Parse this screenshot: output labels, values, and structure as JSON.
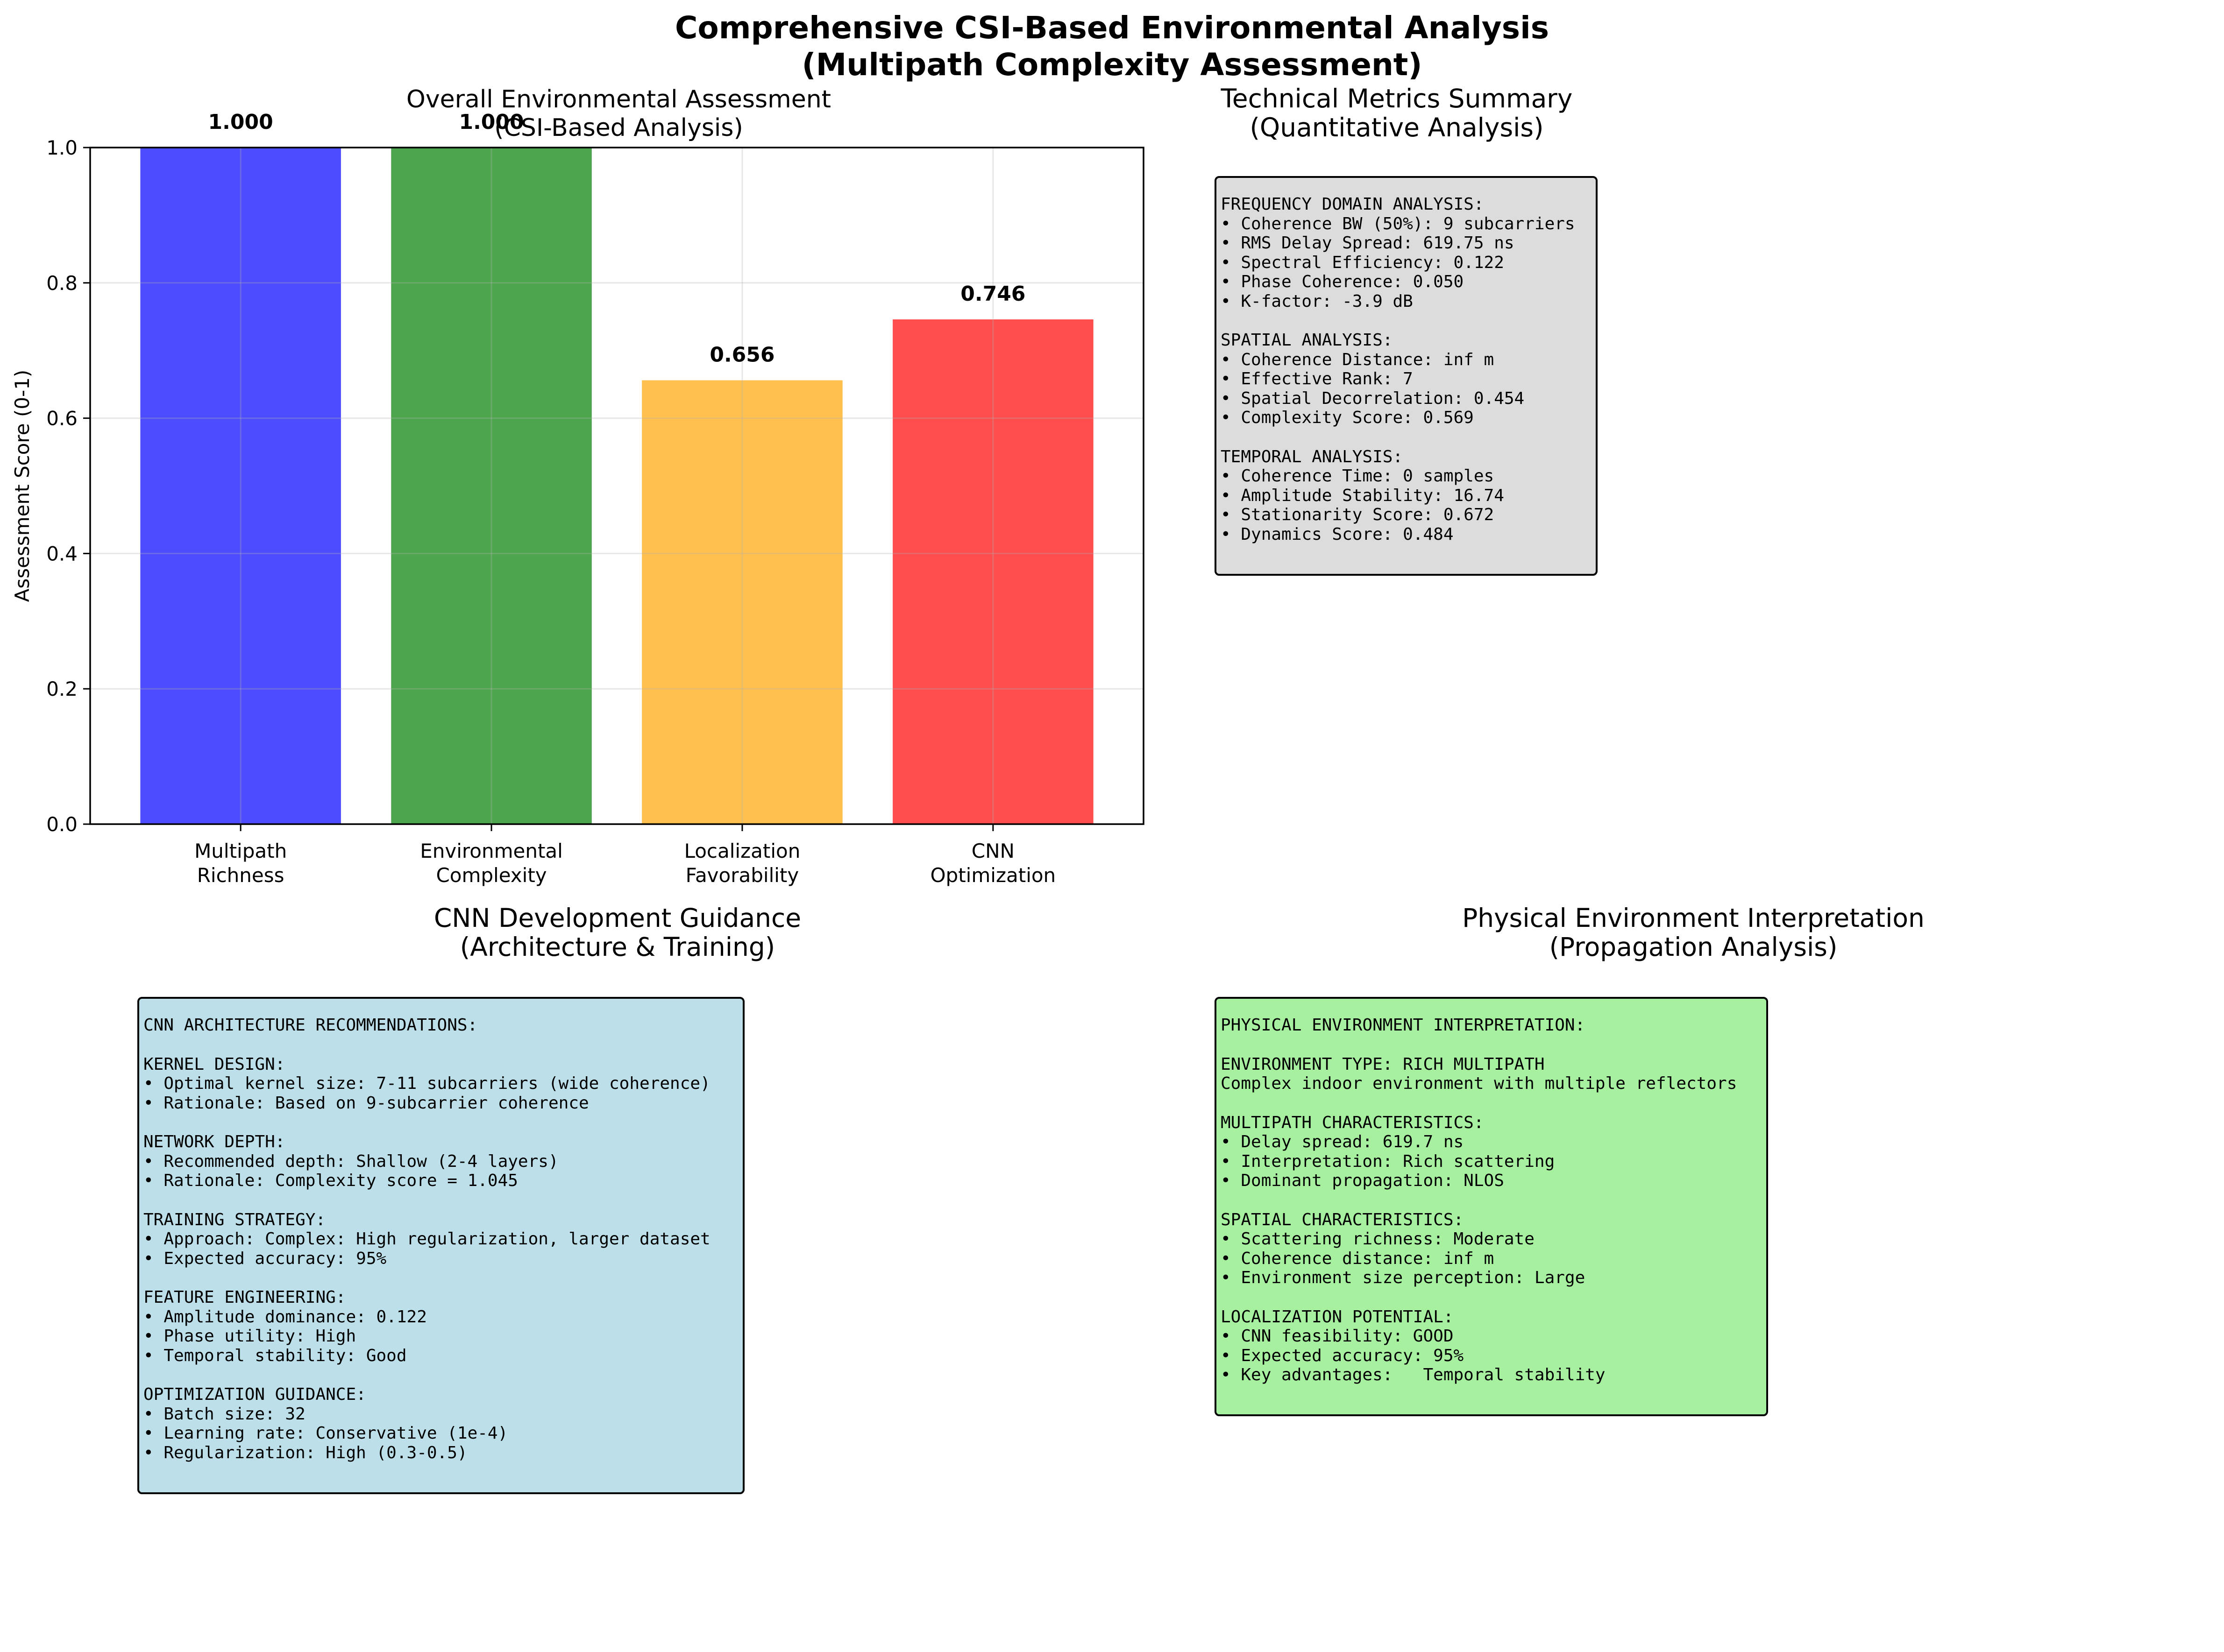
{
  "suptitle": {
    "line1": "Comprehensive CSI-Based Environmental Analysis",
    "line2": "(Multipath Complexity Assessment)"
  },
  "chart_data": {
    "type": "bar",
    "title": [
      "Overall Environmental Assessment",
      "(CSI-Based Analysis)"
    ],
    "xlabel": "",
    "ylabel": "Assessment Score (0-1)",
    "categories": [
      [
        "Multipath",
        "Richness"
      ],
      [
        "Environmental",
        "Complexity"
      ],
      [
        "Localization",
        "Favorability"
      ],
      [
        "CNN",
        "Optimization"
      ]
    ],
    "values": [
      1.0,
      1.0,
      0.656,
      0.746
    ],
    "value_labels": [
      "1.000",
      "1.000",
      "0.656",
      "0.746"
    ],
    "colors": [
      "#4d4dff",
      "#4da64d",
      "#ffc04d",
      "#ff4d4d"
    ],
    "ylim": [
      0,
      1.0
    ],
    "yticks": [
      "0.0",
      "0.2",
      "0.4",
      "0.6",
      "0.8",
      "1.0"
    ],
    "grid": true
  },
  "panels": {
    "technical": {
      "title": [
        "Technical Metrics Summary",
        "(Quantitative Analysis)"
      ],
      "bg": "#dcdcdc",
      "sections": [
        [
          "FREQUENCY DOMAIN ANALYSIS:",
          "• Coherence BW (50%): 9 subcarriers",
          "• RMS Delay Spread: 619.75 ns",
          "• Spectral Efficiency: 0.122",
          "• Phase Coherence: 0.050",
          "• K-factor: -3.9 dB"
        ],
        [
          "SPATIAL ANALYSIS:",
          "• Coherence Distance: inf m",
          "• Effective Rank: 7",
          "• Spatial Decorrelation: 0.454",
          "• Complexity Score: 0.569"
        ],
        [
          "TEMPORAL ANALYSIS:",
          "• Coherence Time: 0 samples",
          "• Amplitude Stability: 16.74",
          "• Stationarity Score: 0.672",
          "• Dynamics Score: 0.484"
        ]
      ]
    },
    "cnn": {
      "title": [
        "CNN Development Guidance",
        "(Architecture & Training)"
      ],
      "bg": "#bcdfe9",
      "sections": [
        [
          "CNN ARCHITECTURE RECOMMENDATIONS:"
        ],
        [
          "KERNEL DESIGN:",
          "• Optimal kernel size: 7-11 subcarriers (wide coherence)",
          "• Rationale: Based on 9-subcarrier coherence"
        ],
        [
          "NETWORK DEPTH:",
          "• Recommended depth: Shallow (2-4 layers)",
          "• Rationale: Complexity score = 1.045"
        ],
        [
          "TRAINING STRATEGY:",
          "• Approach: Complex: High regularization, larger dataset",
          "• Expected accuracy: 95%"
        ],
        [
          "FEATURE ENGINEERING:",
          "• Amplitude dominance: 0.122",
          "• Phase utility: High",
          "• Temporal stability: Good"
        ],
        [
          "OPTIMIZATION GUIDANCE:",
          "• Batch size: 32",
          "• Learning rate: Conservative (1e-4)",
          "• Regularization: High (0.3-0.5)"
        ]
      ]
    },
    "physical": {
      "title": [
        "Physical Environment Interpretation",
        "(Propagation Analysis)"
      ],
      "bg": "#a6f0a0",
      "sections": [
        [
          "PHYSICAL ENVIRONMENT INTERPRETATION:"
        ],
        [
          "ENVIRONMENT TYPE: RICH MULTIPATH",
          "Complex indoor environment with multiple reflectors"
        ],
        [
          "MULTIPATH CHARACTERISTICS:",
          "• Delay spread: 619.7 ns",
          "• Interpretation: Rich scattering",
          "• Dominant propagation: NLOS"
        ],
        [
          "SPATIAL CHARACTERISTICS:",
          "• Scattering richness: Moderate",
          "• Coherence distance: inf m",
          "• Environment size perception: Large"
        ],
        [
          "LOCALIZATION POTENTIAL:",
          "• CNN feasibility: GOOD",
          "• Expected accuracy: 95%",
          "• Key advantages:   Temporal stability"
        ]
      ]
    }
  }
}
